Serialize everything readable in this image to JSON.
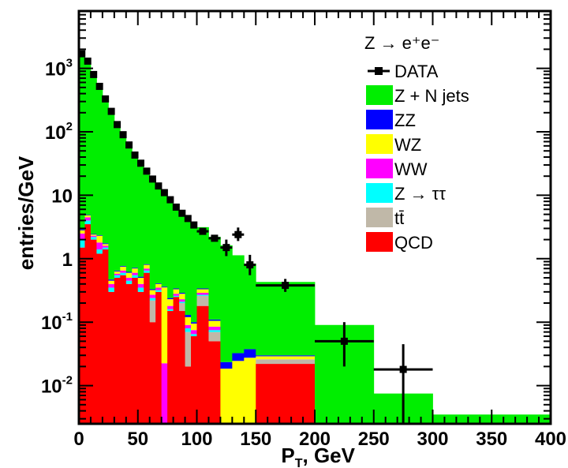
{
  "chart_data": {
    "type": "bar",
    "title": "",
    "xlabel": "P",
    "xlabel_sub": "T",
    "xlabel_unit": ", GeV",
    "ylabel": "entries/GeV",
    "xlim": [
      0,
      400
    ],
    "ylim": [
      0.0025,
      8000
    ],
    "yscale": "log",
    "stacked": true,
    "legend_placement": "top-right",
    "legend_title": "Z → e⁺e⁻",
    "x_ticks": [
      {
        "value": 0,
        "label": "0"
      },
      {
        "value": 50,
        "label": "50"
      },
      {
        "value": 100,
        "label": "100"
      },
      {
        "value": 150,
        "label": "150"
      },
      {
        "value": 200,
        "label": "200"
      },
      {
        "value": 250,
        "label": "250"
      },
      {
        "value": 300,
        "label": "300"
      },
      {
        "value": 350,
        "label": "350"
      },
      {
        "value": 400,
        "label": "400"
      }
    ],
    "y_ticks": [
      {
        "value": 0.01,
        "base": "10",
        "exp": "-2"
      },
      {
        "value": 0.1,
        "base": "10",
        "exp": "-1"
      },
      {
        "value": 1,
        "base": "1",
        "exp": ""
      },
      {
        "value": 10,
        "base": "10",
        "exp": ""
      },
      {
        "value": 100,
        "base": "10",
        "exp": "2"
      },
      {
        "value": 1000,
        "base": "10",
        "exp": "3"
      }
    ],
    "bins": [
      {
        "lo": 0,
        "hi": 5,
        "qcd": 1.5,
        "tt": 0,
        "ztt": 0.5,
        "ww": 0.5,
        "wz": 0.3,
        "zz": 0.1,
        "z": 1700
      },
      {
        "lo": 5,
        "hi": 10,
        "qcd": 3.5,
        "tt": 0,
        "ztt": 0.5,
        "ww": 0.5,
        "wz": 0.3,
        "zz": 0.1,
        "z": 1400
      },
      {
        "lo": 10,
        "hi": 15,
        "qcd": 2,
        "tt": 0,
        "ztt": 0.2,
        "ww": 0.1,
        "wz": 0.1,
        "zz": 0.05,
        "z": 800
      },
      {
        "lo": 15,
        "hi": 20,
        "qcd": 1.2,
        "tt": 0,
        "ztt": 0.2,
        "ww": 0.4,
        "wz": 0.5,
        "zz": 0.05,
        "z": 500
      },
      {
        "lo": 20,
        "hi": 25,
        "qcd": 1.4,
        "tt": 0,
        "ztt": 0.1,
        "ww": 0.1,
        "wz": 0.1,
        "zz": 0.05,
        "z": 300
      },
      {
        "lo": 25,
        "hi": 30,
        "qcd": 0.3,
        "tt": 0,
        "ztt": 0.05,
        "ww": 0.05,
        "wz": 0.05,
        "zz": 0.02,
        "z": 200
      },
      {
        "lo": 30,
        "hi": 35,
        "qcd": 0.5,
        "tt": 0,
        "ztt": 0.05,
        "ww": 0.03,
        "wz": 0.05,
        "zz": 0.02,
        "z": 120
      },
      {
        "lo": 35,
        "hi": 40,
        "qcd": 0.55,
        "tt": 0,
        "ztt": 0.05,
        "ww": 0.05,
        "wz": 0.1,
        "zz": 0.02,
        "z": 80
      },
      {
        "lo": 40,
        "hi": 45,
        "qcd": 0.4,
        "tt": 0,
        "ztt": 0.05,
        "ww": 0.05,
        "wz": 0.1,
        "zz": 0.02,
        "z": 55
      },
      {
        "lo": 45,
        "hi": 50,
        "qcd": 0.5,
        "tt": 0,
        "ztt": 0.05,
        "ww": 0.05,
        "wz": 0.1,
        "zz": 0.02,
        "z": 40
      },
      {
        "lo": 50,
        "hi": 55,
        "qcd": 0.3,
        "tt": 0,
        "ztt": 0.05,
        "ww": 0.05,
        "wz": 0.1,
        "zz": 0.02,
        "z": 30
      },
      {
        "lo": 55,
        "hi": 60,
        "qcd": 0.6,
        "tt": 0,
        "ztt": 0.05,
        "ww": 0.05,
        "wz": 0.1,
        "zz": 0.02,
        "z": 22
      },
      {
        "lo": 60,
        "hi": 65,
        "qcd": 0.1,
        "tt": 0.12,
        "ztt": 0.02,
        "ww": 0.03,
        "wz": 0.05,
        "zz": 0.01,
        "z": 17
      },
      {
        "lo": 65,
        "hi": 70,
        "qcd": 0.3,
        "tt": 0,
        "ztt": 0.02,
        "ww": 0.03,
        "wz": 0.05,
        "zz": 0.01,
        "z": 13
      },
      {
        "lo": 70,
        "hi": 75,
        "qcd": 0.0025,
        "tt": 0,
        "ztt": 0,
        "ww": 0.02,
        "wz": 0.33,
        "zz": 0.01,
        "z": 10
      },
      {
        "lo": 75,
        "hi": 80,
        "qcd": 0.15,
        "tt": 0,
        "ztt": 0.01,
        "ww": 0.02,
        "wz": 0.05,
        "zz": 0.01,
        "z": 8
      },
      {
        "lo": 80,
        "hi": 85,
        "qcd": 0.25,
        "tt": 0,
        "ztt": 0.01,
        "ww": 0.02,
        "wz": 0.05,
        "zz": 0.01,
        "z": 6.5
      },
      {
        "lo": 85,
        "hi": 90,
        "qcd": 0.15,
        "tt": 0.05,
        "ztt": 0.01,
        "ww": 0.02,
        "wz": 0.05,
        "zz": 0.01,
        "z": 5
      },
      {
        "lo": 90,
        "hi": 95,
        "qcd": 0.02,
        "tt": 0.05,
        "ztt": 0.01,
        "ww": 0.01,
        "wz": 0.03,
        "zz": 0.01,
        "z": 4
      },
      {
        "lo": 95,
        "hi": 100,
        "qcd": 0.06,
        "tt": 0,
        "ztt": 0.005,
        "ww": 0.01,
        "wz": 0.02,
        "zz": 0.005,
        "z": 3.5
      },
      {
        "lo": 100,
        "hi": 110,
        "qcd": 0.18,
        "tt": 0.08,
        "ztt": 0.01,
        "ww": 0.02,
        "wz": 0.04,
        "zz": 0.01,
        "z": 2.8
      },
      {
        "lo": 110,
        "hi": 120,
        "qcd": 0.05,
        "tt": 0.02,
        "ztt": 0.005,
        "ww": 0.01,
        "wz": 0.02,
        "zz": 0.005,
        "z": 2.1
      },
      {
        "lo": 120,
        "hi": 130,
        "qcd": 0.0025,
        "tt": 0,
        "ztt": 0,
        "ww": 0,
        "wz": 0.016,
        "zz": 0.005,
        "z": 1.6
      },
      {
        "lo": 130,
        "hi": 140,
        "qcd": 0.0025,
        "tt": 0,
        "ztt": 0,
        "ww": 0,
        "wz": 0.022,
        "zz": 0.008,
        "z": 1.1
      },
      {
        "lo": 140,
        "hi": 150,
        "qcd": 0.0025,
        "tt": 0,
        "ztt": 0,
        "ww": 0,
        "wz": 0.025,
        "zz": 0.01,
        "z": 0.8
      },
      {
        "lo": 150,
        "hi": 200,
        "qcd": 0.022,
        "tt": 0.004,
        "ztt": 0,
        "ww": 0,
        "wz": 0.003,
        "zz": 0.001,
        "z": 0.4
      },
      {
        "lo": 200,
        "hi": 250,
        "qcd": 0,
        "tt": 0,
        "ztt": 0,
        "ww": 0,
        "wz": 0,
        "zz": 0.0003,
        "z": 0.09
      },
      {
        "lo": 250,
        "hi": 300,
        "qcd": 0,
        "tt": 0,
        "ztt": 0,
        "ww": 0,
        "wz": 0,
        "zz": 0,
        "z": 0.0075
      },
      {
        "lo": 300,
        "hi": 400,
        "qcd": 0,
        "tt": 0,
        "ztt": 0,
        "ww": 0,
        "wz": 0,
        "zz": 0,
        "z": 0.0035
      }
    ],
    "series": [
      {
        "key": "z",
        "name": "Z + N jets",
        "color": "#00ee00"
      },
      {
        "key": "zz",
        "name": "ZZ",
        "color": "#0000ff"
      },
      {
        "key": "wz",
        "name": "WZ",
        "color": "#ffff00"
      },
      {
        "key": "ww",
        "name": "WW",
        "color": "#ff00ff"
      },
      {
        "key": "ztt",
        "name": "Z → ττ",
        "color": "#00ffff"
      },
      {
        "key": "tt",
        "name": "tt̄",
        "color": "#c0b8a8"
      },
      {
        "key": "qcd",
        "name": "QCD",
        "color": "#ff0000"
      }
    ],
    "stack_order": [
      "qcd",
      "tt",
      "ztt",
      "ww",
      "wz",
      "zz",
      "z"
    ],
    "data_series": {
      "name": "DATA",
      "color": "#000000",
      "points": [
        {
          "x": 2.5,
          "y": 1700,
          "xerr": 2.5
        },
        {
          "x": 7.5,
          "y": 1300,
          "xerr": 2.5
        },
        {
          "x": 12.5,
          "y": 800,
          "xerr": 2.5
        },
        {
          "x": 17.5,
          "y": 520,
          "xerr": 2.5
        },
        {
          "x": 22.5,
          "y": 330,
          "xerr": 2.5
        },
        {
          "x": 27.5,
          "y": 210,
          "xerr": 2.5
        },
        {
          "x": 32.5,
          "y": 130,
          "xerr": 2.5
        },
        {
          "x": 37.5,
          "y": 90,
          "xerr": 2.5
        },
        {
          "x": 42.5,
          "y": 62,
          "xerr": 2.5
        },
        {
          "x": 47.5,
          "y": 43,
          "xerr": 2.5
        },
        {
          "x": 52.5,
          "y": 32,
          "xerr": 2.5
        },
        {
          "x": 57.5,
          "y": 24,
          "xerr": 2.5
        },
        {
          "x": 62.5,
          "y": 18,
          "xerr": 2.5
        },
        {
          "x": 67.5,
          "y": 14,
          "xerr": 2.5
        },
        {
          "x": 72.5,
          "y": 11,
          "xerr": 2.5
        },
        {
          "x": 77.5,
          "y": 8.5,
          "xerr": 2.5
        },
        {
          "x": 82.5,
          "y": 6.5,
          "xerr": 2.5
        },
        {
          "x": 87.5,
          "y": 5.2,
          "xerr": 2.5
        },
        {
          "x": 92.5,
          "y": 4.3,
          "xerr": 2.5
        },
        {
          "x": 97.5,
          "y": 3.4,
          "xerr": 2.5
        },
        {
          "x": 105,
          "y": 2.7,
          "xerr": 5
        },
        {
          "x": 115,
          "y": 2.1,
          "xerr": 5
        },
        {
          "x": 125,
          "y": 1.5,
          "xerr": 5,
          "ylo": 1.1,
          "yhi": 2.0
        },
        {
          "x": 135,
          "y": 2.4,
          "xerr": 5,
          "ylo": 1.9,
          "yhi": 3.1
        },
        {
          "x": 145,
          "y": 0.8,
          "xerr": 5,
          "ylo": 0.55,
          "yhi": 1.15
        },
        {
          "x": 175,
          "y": 0.38,
          "xerr": 25,
          "ylo": 0.3,
          "yhi": 0.48
        },
        {
          "x": 225,
          "y": 0.05,
          "xerr": 25,
          "ylo": 0.02,
          "yhi": 0.1
        },
        {
          "x": 275,
          "y": 0.018,
          "xerr": 25,
          "ylo": 0.0025,
          "yhi": 0.045
        }
      ]
    }
  }
}
